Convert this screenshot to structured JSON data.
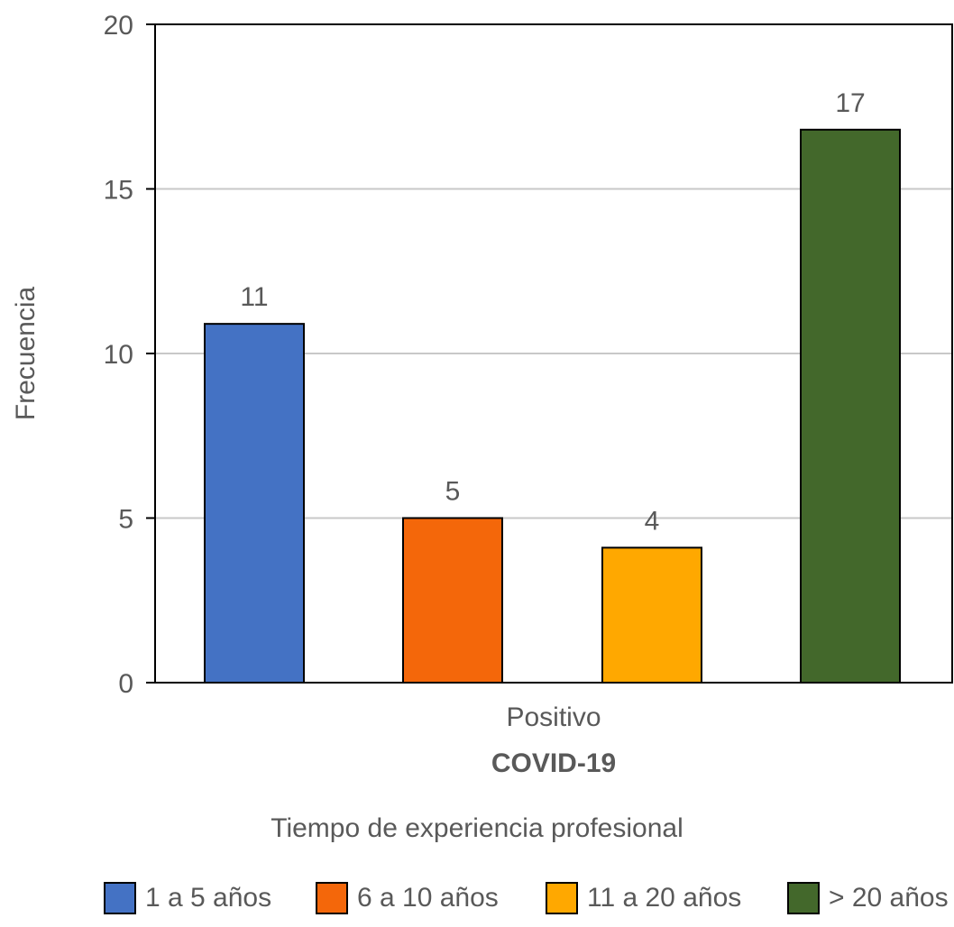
{
  "chart_data": {
    "type": "bar",
    "ylabel": "Frecuencia",
    "xlabel": "COVID-19",
    "category_label": "Positivo",
    "ylim": [
      0,
      20
    ],
    "yticks": [
      0,
      5,
      10,
      15,
      20
    ],
    "grid": true,
    "legend_title": "Tiempo de experiencia profesional",
    "legend_position": "bottom",
    "series": [
      {
        "name": "1 a 5 años",
        "value": 10.9,
        "label": "11",
        "color": "#4472C4"
      },
      {
        "name": "6 a 10 años",
        "value": 5.0,
        "label": "5",
        "color": "#F4670A"
      },
      {
        "name": "11 a 20 años",
        "value": 4.1,
        "label": "4",
        "color": "#FFA800"
      },
      {
        "name": "> 20 años",
        "value": 16.8,
        "label": "17",
        "color": "#43682B"
      }
    ]
  }
}
